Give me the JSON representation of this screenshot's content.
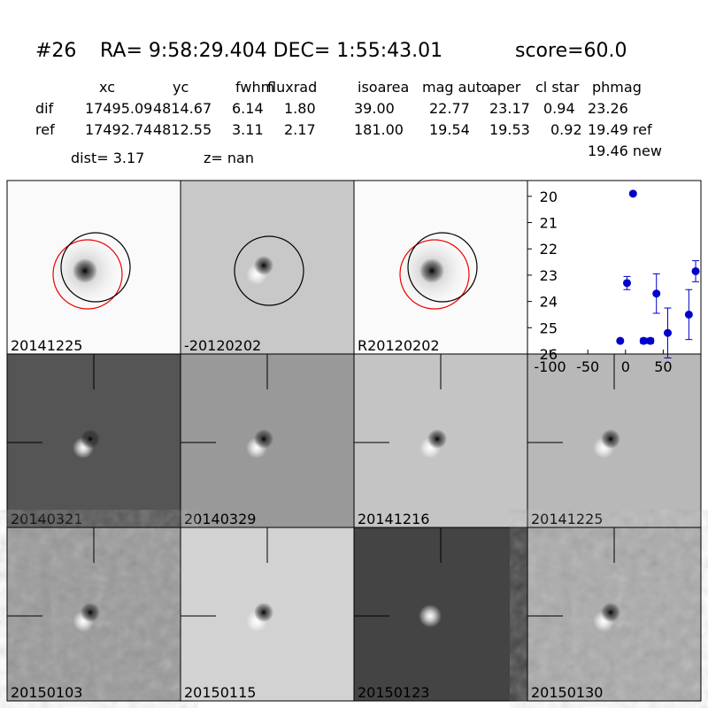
{
  "header": {
    "id": "#26",
    "coords": "RA= 9:58:29.404 DEC= 1:55:43.01",
    "score": "score=60.0"
  },
  "table": {
    "columns": [
      "xc",
      "yc",
      "fwhm",
      "fluxrad",
      "isoarea",
      "mag auto",
      "aper",
      "cl star",
      "phmag"
    ],
    "rows": [
      {
        "label": "dif",
        "cells": [
          "17495.09",
          "4814.67",
          "6.14",
          "1.80",
          "39.00",
          "22.77",
          "23.17",
          "0.94",
          "23.26"
        ]
      },
      {
        "label": "ref",
        "cells": [
          "17492.74",
          "4812.55",
          "3.11",
          "2.17",
          "181.00",
          "19.54",
          "19.53",
          "0.92",
          "19.49 ref"
        ]
      }
    ],
    "extra": "19.46 new"
  },
  "dist": "dist=  3.17",
  "z": "z=   nan",
  "panels": [
    {
      "label": "20141225"
    },
    {
      "label": "-20120202"
    },
    {
      "label": "R20120202"
    },
    {
      "label": "20140321"
    },
    {
      "label": "20140329"
    },
    {
      "label": "20141216"
    },
    {
      "label": "20141225",
      "color": "#ff0000"
    },
    {
      "label": "20150103"
    },
    {
      "label": "20150115"
    },
    {
      "label": "20150123"
    },
    {
      "label": "20150130"
    }
  ],
  "plot": {
    "type": "scatter",
    "color": "#0000cc",
    "x": [
      -7,
      10,
      2,
      24,
      33,
      41,
      56,
      84,
      93
    ],
    "values": [
      25.5,
      19.9,
      23.3,
      25.5,
      25.5,
      23.7,
      25.2,
      24.5,
      22.85
    ],
    "errors": [
      0.05,
      0.05,
      0.25,
      0.1,
      0.1,
      0.75,
      0.95,
      0.95,
      0.4
    ],
    "xlim": [
      -130,
      100
    ],
    "xticks": [
      -100,
      -50,
      0,
      50
    ],
    "ylim": [
      26,
      19.4
    ],
    "yticks": [
      20,
      21,
      22,
      23,
      24,
      25,
      26
    ]
  }
}
